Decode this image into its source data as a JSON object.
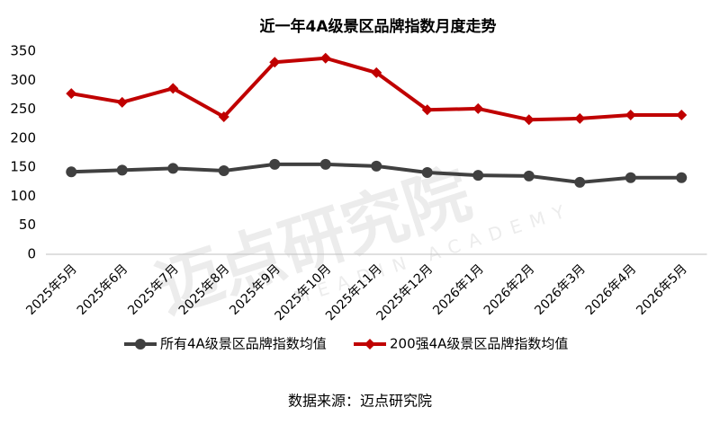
{
  "chart_data": {
    "type": "line",
    "title": "近一年4A级景区品牌指数月度走势",
    "source": "数据来源：迈点研究院",
    "watermark": {
      "text": "迈点研究院",
      "subtext": "MEADIN ACADEMY"
    },
    "categories": [
      "2025年5月",
      "2025年6月",
      "2025年7月",
      "2025年8月",
      "2025年9月",
      "2025年10月",
      "2025年11月",
      "2025年12月",
      "2026年1月",
      "2026年2月",
      "2026年3月",
      "2026年4月",
      "2026年5月"
    ],
    "series": [
      {
        "name": "所有4A级景区品牌指数均值",
        "color": "#404040",
        "marker": "circle",
        "values": [
          142,
          145,
          148,
          144,
          155,
          155,
          152,
          141,
          136,
          135,
          124,
          132,
          132
        ]
      },
      {
        "name": "200强4A级景区品牌指数均值",
        "color": "#c00000",
        "marker": "diamond",
        "values": [
          277,
          262,
          286,
          237,
          331,
          338,
          313,
          249,
          251,
          232,
          234,
          240,
          240
        ]
      }
    ],
    "ylim": [
      0,
      350
    ],
    "yticks": [
      0,
      50,
      100,
      150,
      200,
      250,
      300,
      350
    ],
    "grid": false
  }
}
